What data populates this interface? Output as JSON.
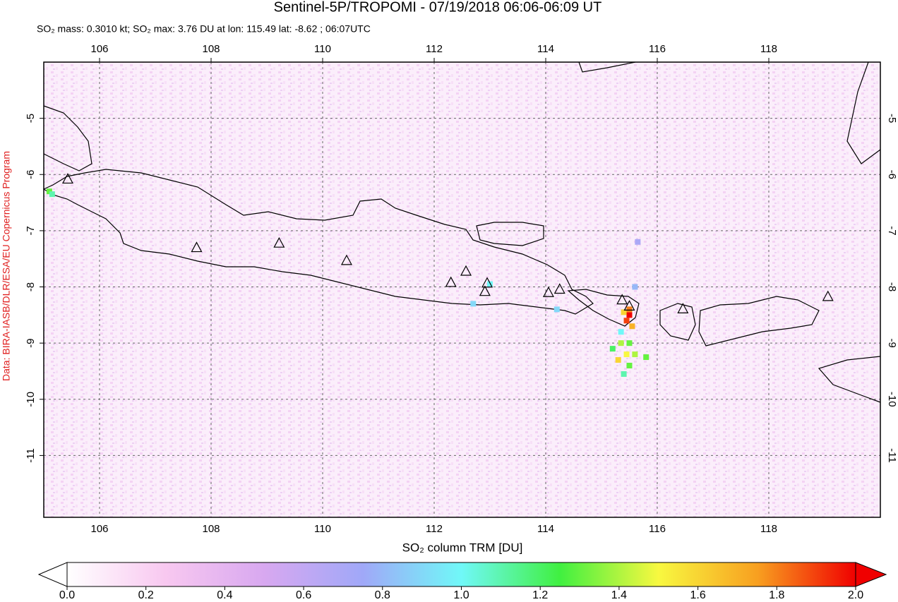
{
  "chart_data": {
    "type": "map",
    "title": "Sentinel-5P/TROPOMI - 07/19/2018 06:06-06:09 UT",
    "subtitle": "SO₂ mass: 0.3010 kt; SO₂ max: 3.76 DU at lon: 115.49 lat: -8.62 ; 06:07UTC",
    "credit": "Data: BIRA-IASB/DLR/ESA/EU Copernicus Program",
    "xlim": [
      105.0,
      120.0
    ],
    "ylim": [
      -12.1,
      -4.0
    ],
    "xticks": [
      106,
      108,
      110,
      112,
      114,
      116,
      118
    ],
    "yticks": [
      -5,
      -6,
      -7,
      -8,
      -9,
      -10,
      -11
    ],
    "grid": true,
    "volcanoes": {
      "lon": [
        105.43,
        107.74,
        109.22,
        110.43,
        112.3,
        112.57,
        112.95,
        112.91,
        114.05,
        114.25,
        115.37,
        115.5,
        116.46,
        119.06
      ],
      "lat": [
        -6.09,
        -7.31,
        -7.23,
        -7.54,
        -7.93,
        -7.73,
        -7.94,
        -8.09,
        -8.11,
        -8.05,
        -8.24,
        -8.35,
        -8.4,
        -8.18
      ]
    },
    "so2_pixels": {
      "lon": [
        115.5,
        115.45,
        115.55,
        115.4,
        115.5,
        115.35,
        115.45,
        115.3,
        115.5,
        115.4,
        115.6,
        115.8,
        115.2,
        115.5,
        115.35,
        115.6,
        105.1,
        105.15,
        112.7,
        113.0,
        114.2,
        115.65
      ],
      "lat": [
        -8.5,
        -8.6,
        -8.7,
        -8.45,
        -8.4,
        -9.0,
        -9.2,
        -9.3,
        -9.4,
        -9.55,
        -9.2,
        -9.25,
        -9.1,
        -9.0,
        -8.8,
        -8.0,
        -6.3,
        -6.35,
        -8.3,
        -7.95,
        -8.4,
        -7.2
      ],
      "values": [
        2.0,
        1.9,
        1.7,
        1.6,
        1.8,
        1.4,
        1.5,
        1.6,
        1.3,
        1.1,
        1.4,
        1.3,
        1.2,
        1.3,
        1.0,
        0.8,
        1.3,
        1.1,
        0.9,
        1.0,
        0.9,
        0.7
      ]
    },
    "colorbar": {
      "label": "SO₂ column TRM [DU]",
      "lim": [
        0.0,
        2.0
      ],
      "colors": [
        "#ffffff",
        "#f8c8f0",
        "#d8a8f0",
        "#a0a8f8",
        "#70f8f8",
        "#40f040",
        "#f8f840",
        "#f8a020",
        "#f00000"
      ],
      "ticks": [
        {
          "value": 0,
          "label": "0.0"
        },
        {
          "value": 0.2,
          "label": "0.2"
        },
        {
          "value": 0.4,
          "label": "0.4"
        },
        {
          "value": 0.6,
          "label": "0.6"
        },
        {
          "value": 0.8,
          "label": "0.8"
        },
        {
          "value": 1,
          "label": "1.0"
        },
        {
          "value": 1.2,
          "label": "1.2"
        },
        {
          "value": 1.4,
          "label": "1.4"
        },
        {
          "value": 1.6,
          "label": "1.6"
        },
        {
          "value": 1.8,
          "label": "1.8"
        },
        {
          "value": 2,
          "label": "2.0"
        }
      ]
    }
  }
}
